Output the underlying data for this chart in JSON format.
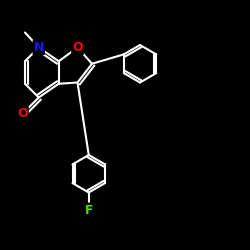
{
  "bg_color": "#000000",
  "bond_color": "#ffffff",
  "N_color": "#1414ff",
  "O_color": "#ff0000",
  "F_color": "#44dd00",
  "lw": 1.5,
  "dbg": 0.012,
  "figsize": [
    2.5,
    2.5
  ],
  "dpi": 100,
  "xlim": [
    0.0,
    1.0
  ],
  "ylim": [
    0.05,
    1.0
  ]
}
